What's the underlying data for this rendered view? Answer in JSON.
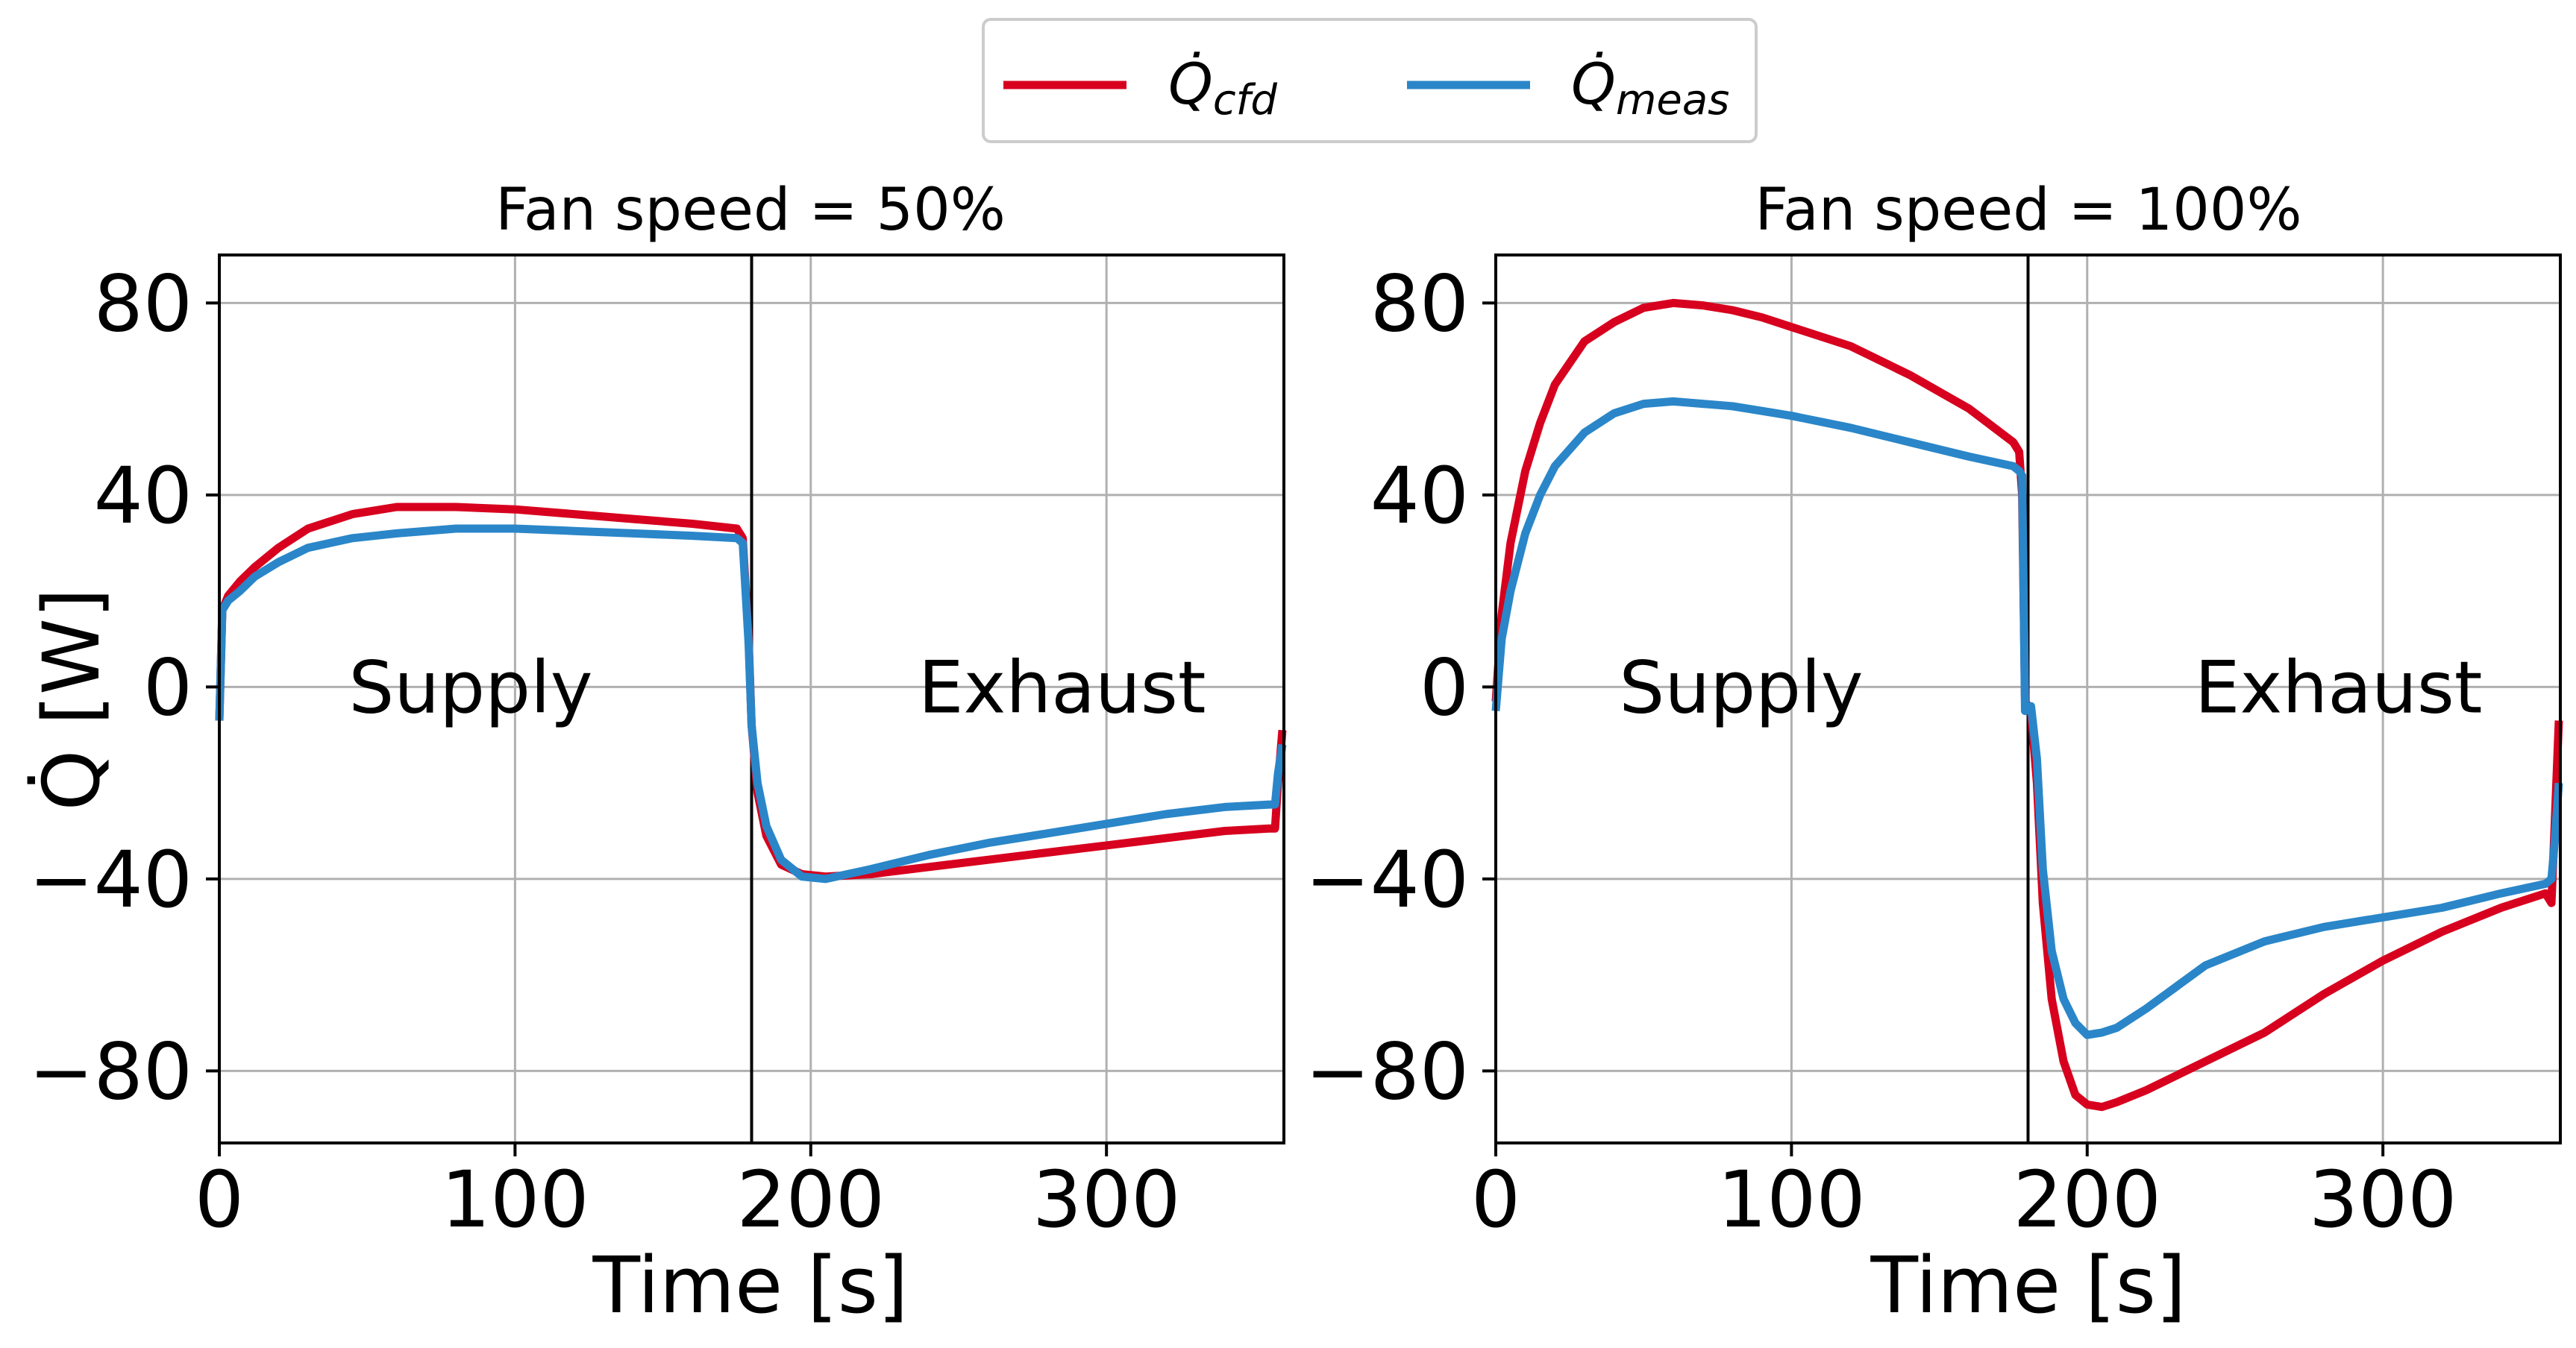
{
  "legend": {
    "items": [
      {
        "symbol": "Q̇",
        "subscript": "cfd",
        "color": "#d7001e"
      },
      {
        "symbol": "Q̇",
        "subscript": "meas",
        "color": "#2a86c8"
      }
    ]
  },
  "chart_data": [
    {
      "type": "line",
      "title": "Fan speed = 50%",
      "xlabel": "Time [s]",
      "ylabel": "Q̇ [W]",
      "xlim": [
        0,
        360
      ],
      "ylim": [
        -95,
        90
      ],
      "xticks": [
        0,
        100,
        200,
        300
      ],
      "yticks": [
        80,
        40,
        0,
        -40,
        -80
      ],
      "xtick_labels": [
        "0",
        "100",
        "200",
        "300"
      ],
      "ytick_labels": [
        "80",
        "40",
        "0",
        "−40",
        "−80"
      ],
      "vline": 180,
      "annotations": [
        {
          "text": "Supply",
          "x": 85,
          "y": 0
        },
        {
          "text": "Exhaust",
          "x": 285,
          "y": 0
        }
      ],
      "series": [
        {
          "name": "Q_cfd",
          "color": "#d7001e",
          "x": [
            0,
            1,
            3,
            7,
            12,
            20,
            30,
            45,
            60,
            80,
            100,
            120,
            140,
            160,
            175,
            177,
            179,
            180,
            182,
            185,
            190,
            197,
            205,
            220,
            240,
            260,
            280,
            300,
            320,
            340,
            355,
            357,
            358,
            359.5
          ],
          "y": [
            -7,
            16,
            19,
            22,
            25,
            29,
            33,
            36,
            37.5,
            37.5,
            37,
            36,
            35,
            34,
            33,
            31,
            10,
            -8,
            -22,
            -31,
            -37,
            -39,
            -39.5,
            -39,
            -37.5,
            -36,
            -34.5,
            -33,
            -31.5,
            -30,
            -29.5,
            -29.5,
            -20,
            -9
          ]
        },
        {
          "name": "Q_meas",
          "color": "#2a86c8",
          "x": [
            0,
            1,
            3,
            7,
            12,
            20,
            30,
            45,
            60,
            80,
            100,
            120,
            140,
            160,
            175,
            177,
            179,
            180,
            182,
            185,
            190,
            197,
            205,
            220,
            240,
            260,
            280,
            300,
            320,
            340,
            355,
            357,
            358,
            359.5
          ],
          "y": [
            -7,
            16,
            18,
            20,
            23,
            26,
            29,
            31,
            32,
            33,
            33,
            32.5,
            32,
            31.5,
            31,
            30,
            9,
            -8,
            -20,
            -29,
            -36,
            -39.5,
            -40,
            -38,
            -35,
            -32.5,
            -30.5,
            -28.5,
            -26.5,
            -25,
            -24.5,
            -24.5,
            -18,
            -12
          ]
        }
      ]
    },
    {
      "type": "line",
      "title": "Fan speed = 100%",
      "xlabel": "Time [s]",
      "ylabel": "",
      "xlim": [
        0,
        360
      ],
      "ylim": [
        -95,
        90
      ],
      "xticks": [
        0,
        100,
        200,
        300
      ],
      "yticks": [
        80,
        40,
        0,
        -40,
        -80
      ],
      "xtick_labels": [
        "0",
        "100",
        "200",
        "300"
      ],
      "ytick_labels": [
        "80",
        "40",
        "0",
        "−40",
        "−80"
      ],
      "vline": 180,
      "annotations": [
        {
          "text": "Supply",
          "x": 83,
          "y": 0
        },
        {
          "text": "Exhaust",
          "x": 285,
          "y": 0
        }
      ],
      "series": [
        {
          "name": "Q_cfd",
          "color": "#d7001e",
          "x": [
            0,
            2,
            5,
            10,
            15,
            20,
            30,
            40,
            50,
            60,
            70,
            80,
            90,
            100,
            120,
            140,
            160,
            175,
            177,
            178,
            179,
            181,
            183,
            185,
            188,
            192,
            196,
            200,
            205,
            210,
            220,
            240,
            260,
            280,
            300,
            320,
            340,
            355,
            357,
            358,
            359.5
          ],
          "y": [
            -3,
            15,
            30,
            45,
            55,
            63,
            72,
            76,
            79,
            80,
            79.5,
            78.5,
            77,
            75,
            71,
            65,
            58,
            51,
            49,
            40,
            -3,
            -5,
            -20,
            -45,
            -65,
            -78,
            -85,
            -87,
            -87.5,
            -86.5,
            -84,
            -78,
            -72,
            -64,
            -57,
            -51,
            -46,
            -43,
            -45,
            -30,
            -7
          ]
        },
        {
          "name": "Q_meas",
          "color": "#2a86c8",
          "x": [
            0,
            2,
            5,
            10,
            15,
            20,
            30,
            40,
            50,
            60,
            70,
            80,
            90,
            100,
            120,
            140,
            160,
            175,
            177,
            178,
            179,
            181,
            183,
            185,
            188,
            192,
            196,
            200,
            205,
            210,
            220,
            240,
            260,
            280,
            300,
            320,
            340,
            355,
            357,
            358,
            359.5
          ],
          "y": [
            -5,
            10,
            20,
            32,
            40,
            46,
            53,
            57,
            59,
            59.5,
            59,
            58.5,
            57.5,
            56.5,
            54,
            51,
            48,
            46,
            45,
            44,
            -5,
            -4,
            -15,
            -38,
            -55,
            -65,
            -70,
            -72.5,
            -72,
            -71,
            -67,
            -58,
            -53,
            -50,
            -48,
            -46,
            -43,
            -41,
            -40,
            -33,
            -20
          ]
        }
      ]
    }
  ]
}
